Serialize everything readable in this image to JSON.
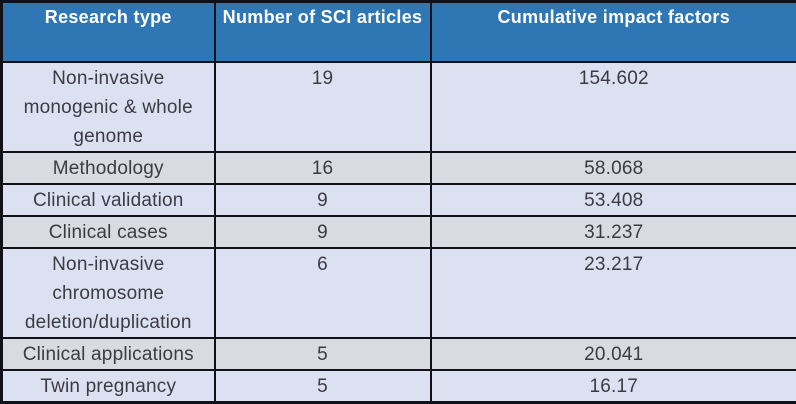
{
  "colors": {
    "header_bg": "#2E76B4",
    "header_text": "#FFFFFF",
    "row_lavender": "#DCE1F1",
    "row_gray": "#D9DBE1",
    "border": "#101018",
    "body_text": "#3B3B44"
  },
  "table": {
    "columns": {
      "research_type": "Research type",
      "sci_articles": "Number of SCI articles",
      "cumulative_impact": "Cumulative impact factors"
    },
    "rows": [
      {
        "research_type": "Non-invasive monogenic & whole genome",
        "sci_articles": "19",
        "cumulative_impact": "154.602"
      },
      {
        "research_type": "Methodology",
        "sci_articles": "16",
        "cumulative_impact": "58.068"
      },
      {
        "research_type": "Clinical validation",
        "sci_articles": "9",
        "cumulative_impact": "53.408"
      },
      {
        "research_type": "Clinical cases",
        "sci_articles": "9",
        "cumulative_impact": "31.237"
      },
      {
        "research_type": "Non-invasive chromosome deletion/duplication",
        "sci_articles": "6",
        "cumulative_impact": "23.217"
      },
      {
        "research_type": "Clinical applications",
        "sci_articles": "5",
        "cumulative_impact": "20.041"
      },
      {
        "research_type": "Twin pregnancy",
        "sci_articles": "5",
        "cumulative_impact": "16.17"
      }
    ]
  },
  "chart_data": {
    "type": "table",
    "title": "",
    "columns": [
      "Research type",
      "Number of SCI articles",
      "Cumulative impact factors"
    ],
    "rows": [
      [
        "Non-invasive monogenic & whole genome",
        19,
        154.602
      ],
      [
        "Methodology",
        16,
        58.068
      ],
      [
        "Clinical validation",
        9,
        53.408
      ],
      [
        "Clinical cases",
        9,
        31.237
      ],
      [
        "Non-invasive chromosome deletion/duplication",
        6,
        23.217
      ],
      [
        "Clinical applications",
        5,
        20.041
      ],
      [
        "Twin pregnancy",
        5,
        16.17
      ]
    ]
  }
}
